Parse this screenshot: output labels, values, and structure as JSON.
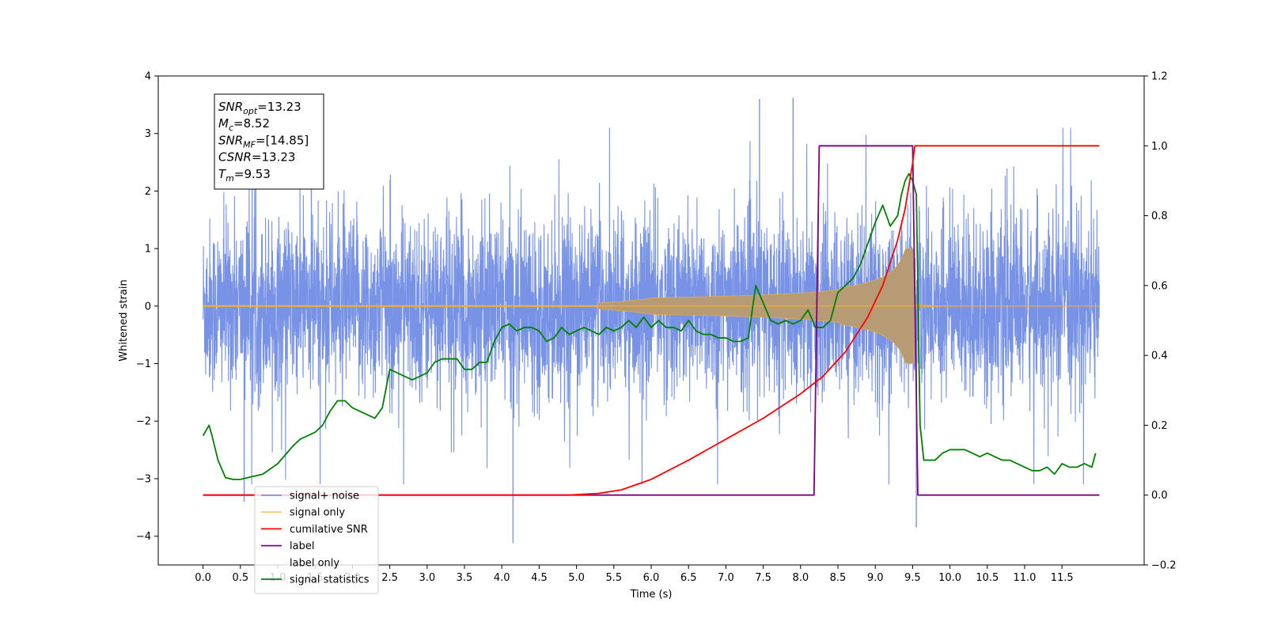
{
  "chart_data": {
    "type": "line",
    "xlabel": "Time (s)",
    "ylabel": "Whitened strain",
    "xlim": [
      -0.6,
      12.6
    ],
    "ylim_left": [
      -4.5,
      4
    ],
    "ylim_right": [
      -0.2,
      1.2
    ],
    "x_ticks": [
      0.0,
      0.5,
      1.0,
      1.5,
      2.0,
      2.5,
      3.0,
      3.5,
      4.0,
      4.5,
      5.0,
      5.5,
      6.0,
      6.5,
      7.0,
      7.5,
      8.0,
      8.5,
      9.0,
      9.5,
      10.0,
      10.5,
      11.0,
      11.5
    ],
    "x_tick_labels": [
      "0.0",
      "0.5",
      "1.0",
      "1.5",
      "2.0",
      "2.5",
      "3.0",
      "3.5",
      "4.0",
      "4.5",
      "5.0",
      "5.5",
      "6.0",
      "6.5",
      "7.0",
      "7.5",
      "8.0",
      "8.5",
      "9.0",
      "9.5",
      "10.0",
      "10.5",
      "11.0",
      "11.5"
    ],
    "y_left_ticks": [
      4,
      3,
      2,
      1,
      0,
      -1,
      -2,
      -3,
      -4
    ],
    "y_left_tick_labels": [
      "4",
      "3",
      "2",
      "1",
      "0",
      "−1",
      "−2",
      "−3",
      "−4"
    ],
    "y_right_ticks": [
      1.2,
      1.0,
      0.8,
      0.6,
      0.4,
      0.2,
      0.0,
      -0.2
    ],
    "y_right_tick_labels": [
      "1.2",
      "1.0",
      "0.8",
      "0.6",
      "0.4",
      "0.2",
      "0.0",
      "−0.2"
    ],
    "grid": false,
    "legend_position": "lower-left",
    "annotation": [
      {
        "base": "SNR",
        "sub": "opt",
        "value": "=13.23"
      },
      {
        "base": "M",
        "sub": "c",
        "value": "=8.52"
      },
      {
        "base": "SNR",
        "sub": "MF",
        "value": "=[14.85]"
      },
      {
        "base": "CSNR",
        "sub": "",
        "value": "=13.23"
      },
      {
        "base": "T",
        "sub": "m",
        "value": "=9.53"
      }
    ],
    "series": [
      {
        "name": "signal+ noise",
        "color": "#7893e6",
        "axis": "left",
        "x_range": [
          0.0,
          12.0
        ],
        "envelope_typical": 1.3,
        "peaks": [
          [
            1.45,
            3.42
          ],
          [
            4.15,
            -4.12
          ],
          [
            7.45,
            3.6
          ],
          [
            7.9,
            3.62
          ],
          [
            9.55,
            -3.85
          ],
          [
            0.55,
            -3.4
          ]
        ]
      },
      {
        "name": "signal only",
        "color": "#f5b041",
        "axis": "left",
        "x_range": [
          0.0,
          12.0
        ],
        "chirp_end": 9.53,
        "peak_amplitude": 1.0
      },
      {
        "name": "cumilative SNR",
        "color": "#ff0000",
        "axis": "right",
        "x": [
          0,
          4.9,
          5.3,
          5.6,
          6.0,
          6.5,
          7.0,
          7.5,
          8.0,
          8.3,
          8.6,
          8.9,
          9.1,
          9.3,
          9.4,
          9.5,
          9.53,
          12.0
        ],
        "y": [
          0.0,
          0.0,
          0.005,
          0.015,
          0.045,
          0.1,
          0.16,
          0.22,
          0.29,
          0.34,
          0.41,
          0.51,
          0.6,
          0.73,
          0.82,
          0.95,
          1.0,
          1.0
        ]
      },
      {
        "name": "label",
        "color": "#800080",
        "axis": "right",
        "x": [
          0,
          8.18,
          8.25,
          9.5,
          9.57,
          12.0
        ],
        "y": [
          0,
          0,
          1,
          1,
          0,
          0
        ]
      },
      {
        "name": "label only",
        "color": "#4d4d4d",
        "axis": "right",
        "hidden_in_plot": true,
        "x": [],
        "y": []
      },
      {
        "name": "signal statistics",
        "color": "#008000",
        "axis": "right",
        "x": [
          0.0,
          0.08,
          0.12,
          0.2,
          0.3,
          0.4,
          0.5,
          0.6,
          0.8,
          1.0,
          1.2,
          1.3,
          1.4,
          1.5,
          1.6,
          1.7,
          1.8,
          1.9,
          2.0,
          2.1,
          2.2,
          2.3,
          2.4,
          2.5,
          2.6,
          2.7,
          2.8,
          2.9,
          3.0,
          3.1,
          3.2,
          3.3,
          3.4,
          3.5,
          3.6,
          3.7,
          3.8,
          3.9,
          4.0,
          4.1,
          4.2,
          4.3,
          4.4,
          4.5,
          4.6,
          4.7,
          4.8,
          4.9,
          5.0,
          5.1,
          5.2,
          5.3,
          5.4,
          5.5,
          5.6,
          5.7,
          5.8,
          5.9,
          6.0,
          6.1,
          6.2,
          6.3,
          6.4,
          6.5,
          6.6,
          6.7,
          6.8,
          6.9,
          7.0,
          7.1,
          7.2,
          7.3,
          7.4,
          7.5,
          7.6,
          7.7,
          7.8,
          7.9,
          8.0,
          8.1,
          8.2,
          8.3,
          8.4,
          8.5,
          8.6,
          8.7,
          8.8,
          8.9,
          9.0,
          9.1,
          9.2,
          9.3,
          9.35,
          9.4,
          9.45,
          9.5,
          9.55,
          9.6,
          9.65,
          9.7,
          9.8,
          9.9,
          10.0,
          10.1,
          10.2,
          10.3,
          10.4,
          10.5,
          10.6,
          10.7,
          10.8,
          10.9,
          11.0,
          11.1,
          11.2,
          11.3,
          11.4,
          11.5,
          11.6,
          11.7,
          11.8,
          11.9,
          11.95
        ],
        "y": [
          0.17,
          0.2,
          0.17,
          0.1,
          0.05,
          0.045,
          0.045,
          0.05,
          0.06,
          0.09,
          0.14,
          0.16,
          0.17,
          0.18,
          0.2,
          0.24,
          0.27,
          0.27,
          0.25,
          0.24,
          0.23,
          0.22,
          0.25,
          0.36,
          0.35,
          0.34,
          0.33,
          0.34,
          0.35,
          0.38,
          0.39,
          0.39,
          0.39,
          0.36,
          0.36,
          0.38,
          0.38,
          0.44,
          0.48,
          0.49,
          0.47,
          0.48,
          0.48,
          0.47,
          0.44,
          0.45,
          0.48,
          0.46,
          0.47,
          0.48,
          0.47,
          0.46,
          0.48,
          0.47,
          0.48,
          0.5,
          0.48,
          0.51,
          0.48,
          0.5,
          0.48,
          0.48,
          0.47,
          0.5,
          0.47,
          0.46,
          0.46,
          0.45,
          0.45,
          0.44,
          0.44,
          0.45,
          0.6,
          0.55,
          0.5,
          0.49,
          0.5,
          0.49,
          0.5,
          0.53,
          0.48,
          0.48,
          0.5,
          0.58,
          0.6,
          0.62,
          0.66,
          0.72,
          0.78,
          0.83,
          0.77,
          0.8,
          0.86,
          0.9,
          0.92,
          0.9,
          0.86,
          0.2,
          0.1,
          0.1,
          0.1,
          0.12,
          0.13,
          0.13,
          0.13,
          0.12,
          0.11,
          0.12,
          0.11,
          0.1,
          0.1,
          0.09,
          0.08,
          0.07,
          0.07,
          0.08,
          0.06,
          0.09,
          0.08,
          0.08,
          0.09,
          0.08,
          0.12
        ]
      }
    ]
  }
}
